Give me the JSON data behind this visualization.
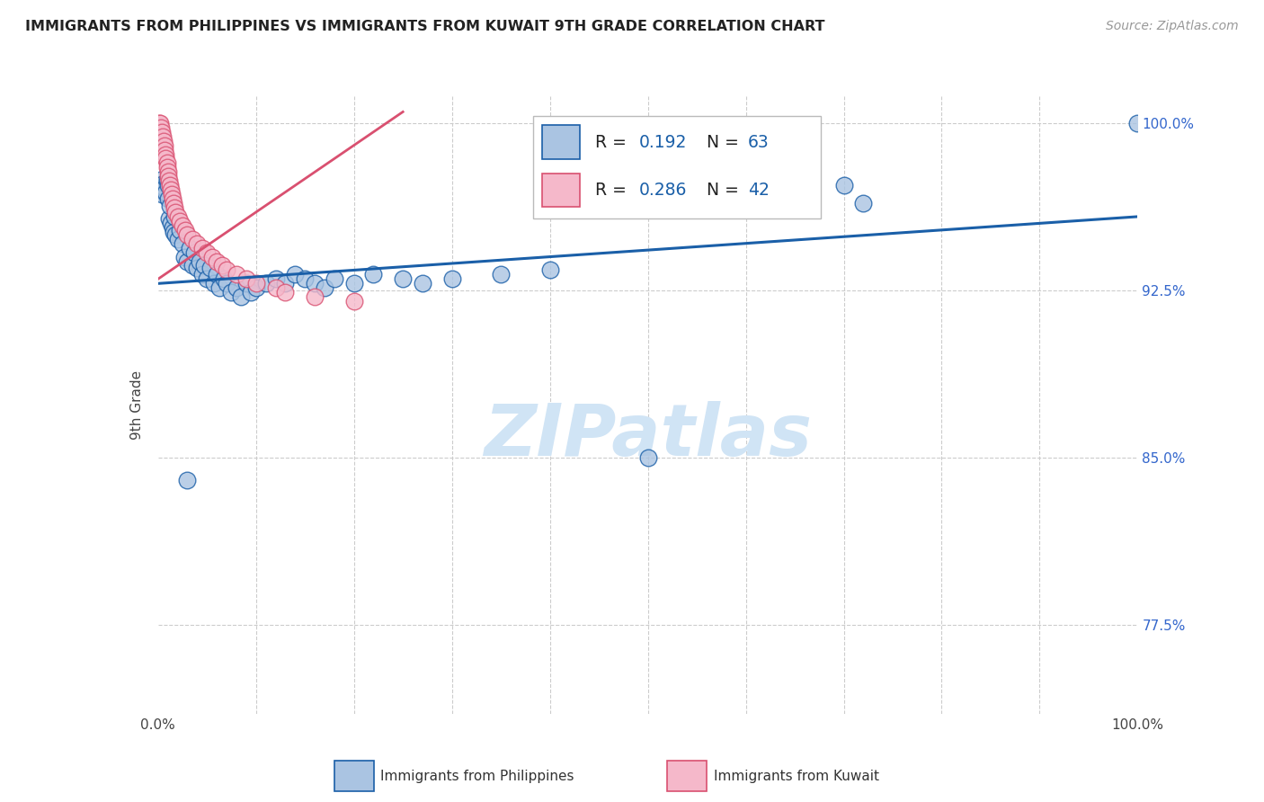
{
  "title": "IMMIGRANTS FROM PHILIPPINES VS IMMIGRANTS FROM KUWAIT 9TH GRADE CORRELATION CHART",
  "source": "Source: ZipAtlas.com",
  "ylabel": "9th Grade",
  "watermark": "ZIPatlas",
  "xlim": [
    0.0,
    1.0
  ],
  "ylim": [
    0.735,
    1.012
  ],
  "ytick_positions": [
    0.775,
    0.85,
    0.925,
    1.0
  ],
  "ytick_labels": [
    "77.5%",
    "85.0%",
    "92.5%",
    "100.0%"
  ],
  "legend_R1": "0.192",
  "legend_N1": "63",
  "legend_R2": "0.286",
  "legend_N2": "42",
  "color_philippines": "#aac4e2",
  "color_kuwait": "#f5b8ca",
  "color_line_philippines": "#1a5fa8",
  "color_line_kuwait": "#d95070",
  "color_title": "#222222",
  "color_source": "#999999",
  "color_ytick": "#3366cc",
  "color_watermark": "#d0e4f5",
  "phil_x": [
    0.002,
    0.003,
    0.004,
    0.005,
    0.006,
    0.007,
    0.008,
    0.009,
    0.01,
    0.01,
    0.011,
    0.012,
    0.013,
    0.015,
    0.016,
    0.017,
    0.018,
    0.02,
    0.022,
    0.025,
    0.027,
    0.03,
    0.032,
    0.035,
    0.037,
    0.04,
    0.042,
    0.045,
    0.047,
    0.05,
    0.053,
    0.057,
    0.06,
    0.063,
    0.067,
    0.07,
    0.075,
    0.08,
    0.085,
    0.09,
    0.095,
    0.1,
    0.11,
    0.12,
    0.13,
    0.14,
    0.15,
    0.16,
    0.17,
    0.18,
    0.2,
    0.22,
    0.25,
    0.27,
    0.3,
    0.35,
    0.4,
    0.5,
    0.65,
    0.7,
    0.72,
    1.0,
    0.03
  ],
  "phil_y": [
    0.97,
    0.972,
    0.968,
    0.975,
    0.973,
    0.971,
    0.969,
    0.974,
    0.966,
    0.972,
    0.957,
    0.963,
    0.955,
    0.953,
    0.951,
    0.958,
    0.95,
    0.948,
    0.952,
    0.946,
    0.94,
    0.938,
    0.944,
    0.936,
    0.942,
    0.935,
    0.938,
    0.932,
    0.936,
    0.93,
    0.935,
    0.928,
    0.932,
    0.926,
    0.93,
    0.928,
    0.924,
    0.926,
    0.922,
    0.928,
    0.924,
    0.926,
    0.928,
    0.93,
    0.928,
    0.932,
    0.93,
    0.928,
    0.926,
    0.93,
    0.928,
    0.932,
    0.93,
    0.928,
    0.93,
    0.932,
    0.934,
    0.85,
    0.97,
    0.972,
    0.964,
    1.0,
    0.84
  ],
  "kuwait_x": [
    0.001,
    0.002,
    0.003,
    0.004,
    0.005,
    0.006,
    0.007,
    0.007,
    0.008,
    0.008,
    0.009,
    0.009,
    0.01,
    0.01,
    0.011,
    0.012,
    0.013,
    0.014,
    0.015,
    0.016,
    0.017,
    0.018,
    0.02,
    0.022,
    0.025,
    0.028,
    0.03,
    0.035,
    0.04,
    0.045,
    0.05,
    0.055,
    0.06,
    0.065,
    0.07,
    0.08,
    0.09,
    0.1,
    0.12,
    0.13,
    0.16,
    0.2
  ],
  "kuwait_y": [
    1.0,
    1.0,
    0.998,
    0.996,
    0.994,
    0.992,
    0.99,
    0.988,
    0.986,
    0.984,
    0.982,
    0.98,
    0.978,
    0.976,
    0.974,
    0.972,
    0.97,
    0.968,
    0.966,
    0.964,
    0.962,
    0.96,
    0.958,
    0.956,
    0.954,
    0.952,
    0.95,
    0.948,
    0.946,
    0.944,
    0.942,
    0.94,
    0.938,
    0.936,
    0.934,
    0.932,
    0.93,
    0.928,
    0.926,
    0.924,
    0.922,
    0.92
  ]
}
